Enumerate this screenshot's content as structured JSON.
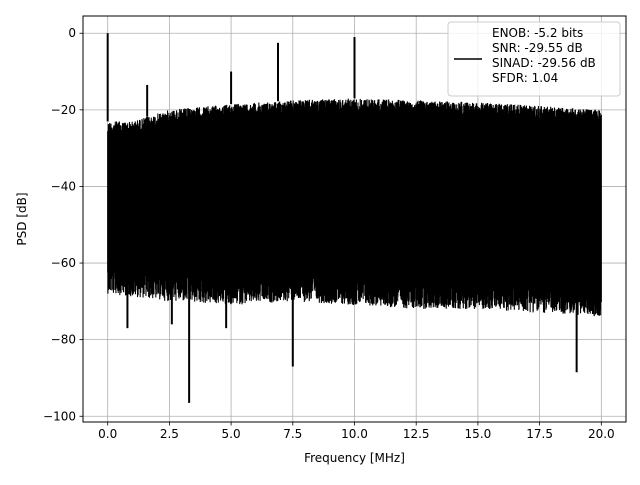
{
  "chart_data": {
    "type": "line",
    "title": "",
    "xlabel": "Frequency [MHz]",
    "ylabel": "PSD [dB]",
    "xlim": [
      -1.0,
      21.0
    ],
    "ylim": [
      -101.5,
      4.5
    ],
    "x_ticks": [
      0.0,
      2.5,
      5.0,
      7.5,
      10.0,
      12.5,
      15.0,
      17.5,
      20.0
    ],
    "x_tick_labels": [
      "0.0",
      "2.5",
      "5.0",
      "7.5",
      "10.0",
      "12.5",
      "15.0",
      "17.5",
      "20.0"
    ],
    "y_ticks": [
      0,
      -20,
      -40,
      -60,
      -80,
      -100
    ],
    "y_tick_labels": [
      "0",
      "−20",
      "−40",
      "−60",
      "−80",
      "−100"
    ],
    "grid": true,
    "legend_position": "top-right",
    "legend": {
      "lines": [
        "ENOB: -5.2 bits",
        "SNR: -29.55 dB",
        "SINAD: -29.56 dB",
        "SFDR: 1.04"
      ]
    },
    "series": [
      {
        "color": "#000000",
        "spectrum": {
          "x_range": [
            0.0,
            20.0
          ],
          "upper_envelope": [
            [
              0.0,
              -23
            ],
            [
              1.0,
              -23
            ],
            [
              2.5,
              -20
            ],
            [
              5.0,
              -18.5
            ],
            [
              7.5,
              -17.5
            ],
            [
              10.0,
              -17
            ],
            [
              12.5,
              -17.5
            ],
            [
              15.0,
              -18
            ],
            [
              17.5,
              -19
            ],
            [
              20.0,
              -20
            ]
          ],
          "lower_envelope": [
            [
              0.0,
              -60
            ],
            [
              2.5,
              -62
            ],
            [
              5.0,
              -63
            ],
            [
              7.5,
              -62
            ],
            [
              10.0,
              -63
            ],
            [
              12.5,
              -64
            ],
            [
              15.0,
              -64
            ],
            [
              17.5,
              -65
            ],
            [
              20.0,
              -66
            ]
          ],
          "peaks": [
            {
              "x": 0.0,
              "y": 0.0
            },
            {
              "x": 1.6,
              "y": -13.5
            },
            {
              "x": 5.0,
              "y": -10.0
            },
            {
              "x": 6.9,
              "y": -2.5
            },
            {
              "x": 10.0,
              "y": -1.0
            }
          ],
          "dips": [
            {
              "x": 0.8,
              "y": -77
            },
            {
              "x": 2.6,
              "y": -76
            },
            {
              "x": 3.3,
              "y": -96.5
            },
            {
              "x": 4.8,
              "y": -77
            },
            {
              "x": 7.5,
              "y": -87
            },
            {
              "x": 19.0,
              "y": -88.5
            }
          ]
        }
      }
    ]
  }
}
